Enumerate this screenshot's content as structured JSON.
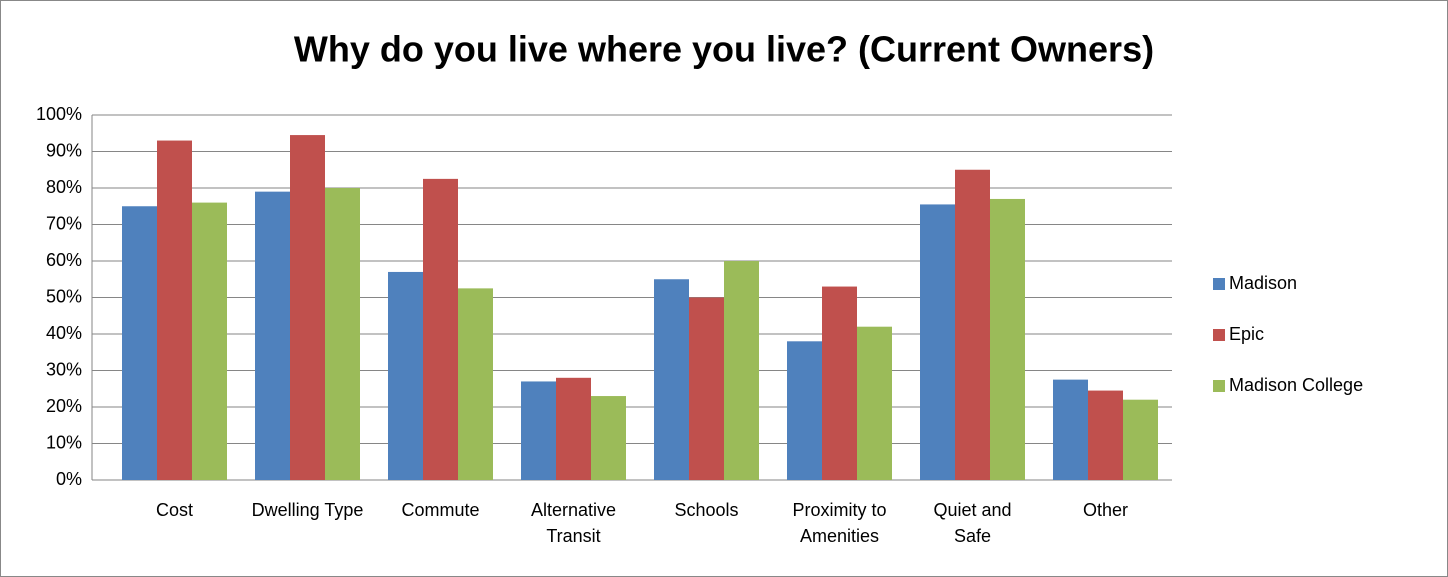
{
  "chart_data": {
    "type": "bar",
    "title": "Why do you live where you live? (Current Owners)",
    "categories": [
      "Cost",
      "Dwelling Type",
      "Commute",
      "Alternative Transit",
      "Schools",
      "Proximity to Amenities",
      "Quiet and Safe",
      "Other"
    ],
    "series": [
      {
        "name": "Madison",
        "color": "#4f81bd",
        "values": [
          75,
          79,
          57,
          27,
          55,
          38,
          75.5,
          27.5
        ]
      },
      {
        "name": "Epic",
        "color": "#c0504d",
        "values": [
          93,
          94.5,
          82.5,
          28,
          50,
          53,
          85,
          24.5
        ]
      },
      {
        "name": "Madison College",
        "color": "#9bbb59",
        "values": [
          76,
          80,
          52.5,
          23,
          60,
          42,
          77,
          22
        ]
      }
    ],
    "ylim": [
      0,
      100
    ],
    "yticks": [
      {
        "value": 0,
        "label": "0%"
      },
      {
        "value": 10,
        "label": "10%"
      },
      {
        "value": 20,
        "label": "20%"
      },
      {
        "value": 30,
        "label": "30%"
      },
      {
        "value": 40,
        "label": "40%"
      },
      {
        "value": 50,
        "label": "50%"
      },
      {
        "value": 60,
        "label": "60%"
      },
      {
        "value": 70,
        "label": "70%"
      },
      {
        "value": 80,
        "label": "80%"
      },
      {
        "value": 90,
        "label": "90%"
      },
      {
        "value": 100,
        "label": "100%"
      }
    ],
    "grid": true,
    "legend": "right"
  }
}
